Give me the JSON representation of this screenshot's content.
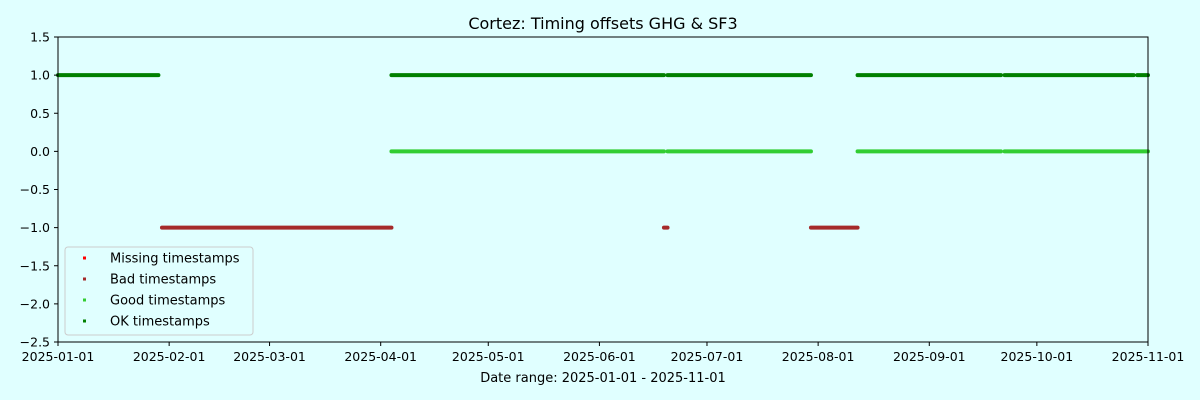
{
  "chart_data": {
    "type": "scatter",
    "title": "Cortez: Timing offsets GHG & SF3",
    "xlabel": "Date range: 2025-01-01 - 2025-11-01",
    "ylabel": "",
    "xlim": [
      "2025-01-01",
      "2025-11-01"
    ],
    "ylim": [
      -2.5,
      1.5
    ],
    "x_ticks": [
      "2025-01-01",
      "2025-02-01",
      "2025-03-01",
      "2025-04-01",
      "2025-05-01",
      "2025-06-01",
      "2025-07-01",
      "2025-08-01",
      "2025-09-01",
      "2025-10-01",
      "2025-11-01"
    ],
    "y_ticks": [
      1.5,
      1.0,
      0.5,
      0.0,
      -0.5,
      -1.0,
      -1.5,
      -2.0,
      -2.5
    ],
    "y_tick_labels": [
      "1.5",
      "1.0",
      "0.5",
      "0.0",
      "−0.5",
      "−1.0",
      "−1.5",
      "−2.0",
      "−2.5"
    ],
    "grid": false,
    "legend_position": "lower-left",
    "series": [
      {
        "name": "Missing timestamps",
        "color": "#ff0000",
        "y": -1,
        "ranges": []
      },
      {
        "name": "Bad timestamps",
        "color": "#a52a2a",
        "y": -1,
        "ranges": [
          [
            "2025-01-30",
            "2025-04-04"
          ],
          [
            "2025-06-19",
            "2025-06-20"
          ],
          [
            "2025-07-30",
            "2025-08-12"
          ]
        ]
      },
      {
        "name": "Good timestamps",
        "color": "#32cd32",
        "y": 0,
        "ranges": [
          [
            "2025-04-04",
            "2025-06-19"
          ],
          [
            "2025-06-20",
            "2025-07-30"
          ],
          [
            "2025-08-12",
            "2025-09-21"
          ],
          [
            "2025-09-22",
            "2025-11-01"
          ]
        ]
      },
      {
        "name": "OK timestamps",
        "color": "#008000",
        "y": 1,
        "ranges": [
          [
            "2025-01-01",
            "2025-01-29"
          ],
          [
            "2025-04-04",
            "2025-06-19"
          ],
          [
            "2025-06-20",
            "2025-07-30"
          ],
          [
            "2025-08-12",
            "2025-09-21"
          ],
          [
            "2025-09-22",
            "2025-10-28"
          ],
          [
            "2025-10-29",
            "2025-11-01"
          ]
        ]
      }
    ]
  }
}
